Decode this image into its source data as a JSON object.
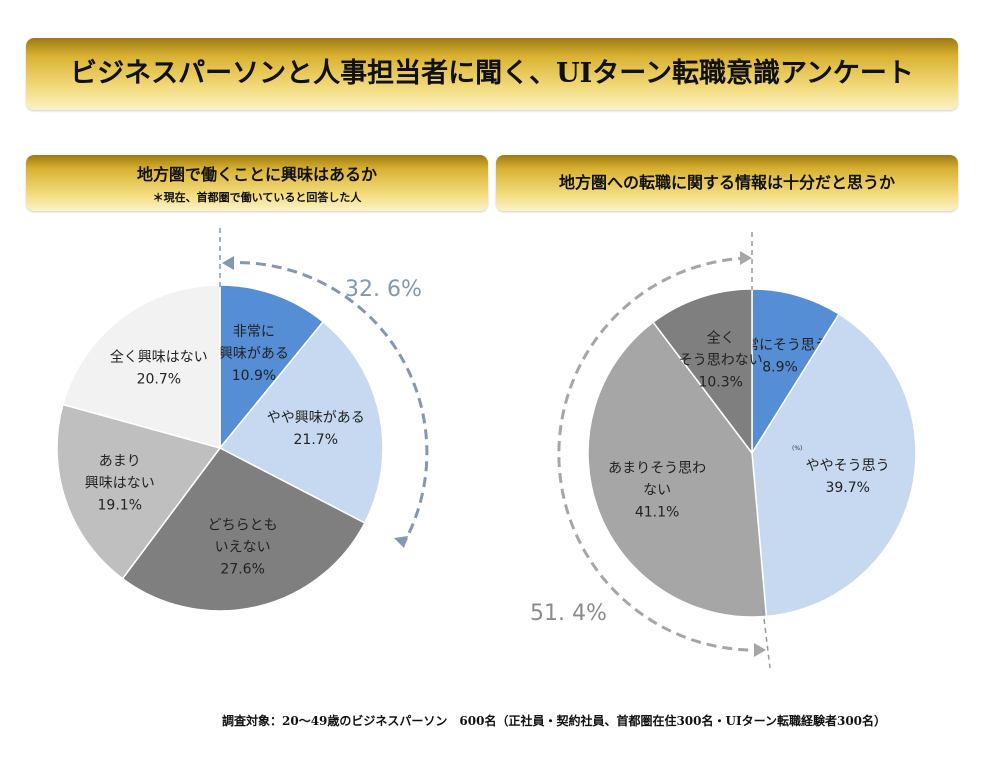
{
  "title": "ビジネスパーソンと人事担当者に聞く、UIターン転職意識アンケート",
  "footer": "調査対象：20～49歳のビジネスパーソン　600名（正社員・契約社員、首都圏在住300名・UIターン転職経験者300名）",
  "chart_data": [
    {
      "type": "pie",
      "title": "地方圏で働くことに興味はあるか",
      "subtitle": "＊現在、首都圏で働いていると回答した人",
      "slices": [
        {
          "label": "非常に\n興味がある",
          "value": 10.9,
          "display": "10.9%",
          "color": "#558ed5"
        },
        {
          "label": "やや興味がある",
          "value": 21.7,
          "display": "21.7%",
          "color": "#c6d9f1"
        },
        {
          "label": "どちらとも\nいえない",
          "value": 27.6,
          "display": "27.6%",
          "color": "#7f7f7f"
        },
        {
          "label": "あまり\n興味はない",
          "value": 19.1,
          "display": "19.1%",
          "color": "#bfbfbf"
        },
        {
          "label": "全く興味はない",
          "value": 20.7,
          "display": "20.7%",
          "color": "#f2f2f2"
        }
      ],
      "annotation": "32. 6%",
      "annotation_color": "#8496b0"
    },
    {
      "type": "pie",
      "title": "地方圏への転職に関する情報は十分だと思うか",
      "unit_note": "(%)",
      "slices": [
        {
          "label": "非常にそう思う",
          "value": 8.9,
          "display": "8.9%",
          "color": "#558ed5"
        },
        {
          "label": "ややそう思う",
          "value": 39.7,
          "display": "39.7%",
          "color": "#c6d9f1"
        },
        {
          "label": "あまりそう思わ\nない",
          "value": 41.1,
          "display": "41.1%",
          "color": "#a6a6a6"
        },
        {
          "label": "全く\nそう思わない",
          "value": 10.3,
          "display": "10.3%",
          "color": "#7f7f7f"
        }
      ],
      "annotation": "51. 4%",
      "annotation_color": "#a6a6a6"
    }
  ]
}
